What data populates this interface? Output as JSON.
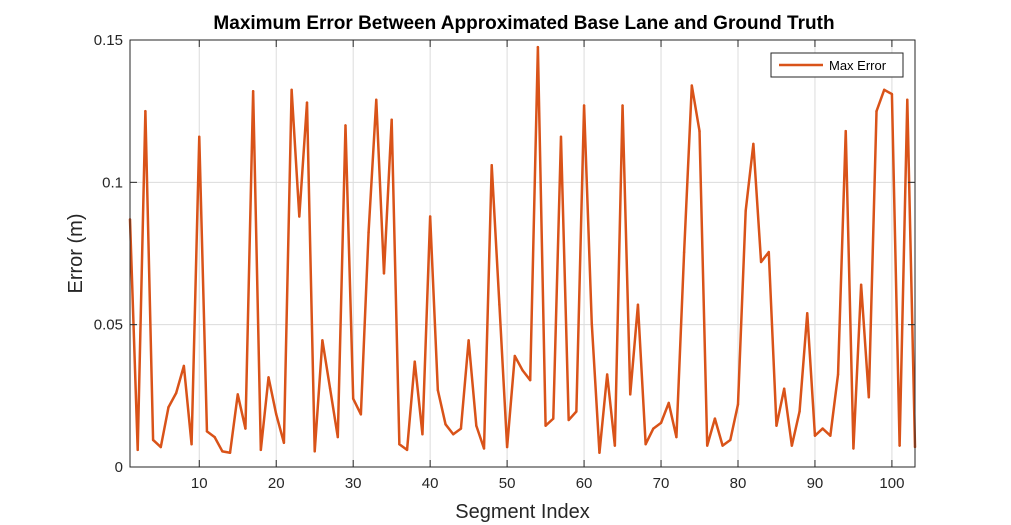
{
  "chart_data": {
    "type": "line",
    "title": "Maximum Error Between Approximated Base Lane and Ground Truth",
    "xlabel": "Segment Index",
    "ylabel": "Error (m)",
    "xlim": [
      1,
      103
    ],
    "ylim": [
      0,
      0.15
    ],
    "xticks": [
      10,
      20,
      30,
      40,
      50,
      60,
      70,
      80,
      90,
      100
    ],
    "yticks": [
      0,
      0.05,
      0.1,
      0.15
    ],
    "xtick_labels": [
      "10",
      "20",
      "30",
      "40",
      "50",
      "60",
      "70",
      "80",
      "90",
      "100"
    ],
    "ytick_labels": [
      "0",
      "0.05",
      "0.1",
      "0.15"
    ],
    "grid": true,
    "legend_position": "top-right",
    "series": [
      {
        "name": "Max Error",
        "color": "#D95319",
        "x": [
          1,
          2,
          3,
          4,
          5,
          6,
          7,
          8,
          9,
          10,
          11,
          12,
          13,
          14,
          15,
          16,
          17,
          18,
          19,
          20,
          21,
          22,
          23,
          24,
          25,
          26,
          27,
          28,
          29,
          30,
          31,
          32,
          33,
          34,
          35,
          36,
          37,
          38,
          39,
          40,
          41,
          42,
          43,
          44,
          45,
          46,
          47,
          48,
          49,
          50,
          51,
          52,
          53,
          54,
          55,
          56,
          57,
          58,
          59,
          60,
          61,
          62,
          63,
          64,
          65,
          66,
          67,
          68,
          69,
          70,
          71,
          72,
          73,
          74,
          75,
          76,
          77,
          78,
          79,
          80,
          81,
          82,
          83,
          84,
          85,
          86,
          87,
          88,
          89,
          90,
          91,
          92,
          93,
          94,
          95,
          96,
          97,
          98,
          99,
          100,
          101,
          102,
          103
        ],
        "values": [
          0.087,
          0.006,
          0.125,
          0.0095,
          0.007,
          0.021,
          0.026,
          0.0355,
          0.008,
          0.116,
          0.0125,
          0.0105,
          0.0055,
          0.005,
          0.0255,
          0.0135,
          0.132,
          0.006,
          0.0315,
          0.0185,
          0.0085,
          0.1325,
          0.088,
          0.128,
          0.0055,
          0.0445,
          0.0275,
          0.0105,
          0.12,
          0.024,
          0.0185,
          0.0825,
          0.129,
          0.068,
          0.122,
          0.008,
          0.006,
          0.037,
          0.0115,
          0.088,
          0.027,
          0.015,
          0.0115,
          0.0135,
          0.0445,
          0.0145,
          0.0065,
          0.106,
          0.057,
          0.007,
          0.039,
          0.034,
          0.0305,
          0.1475,
          0.0145,
          0.017,
          0.116,
          0.0165,
          0.0195,
          0.127,
          0.0505,
          0.005,
          0.0325,
          0.0075,
          0.127,
          0.0255,
          0.057,
          0.008,
          0.0135,
          0.0155,
          0.0225,
          0.0105,
          0.0755,
          0.134,
          0.118,
          0.0075,
          0.017,
          0.0075,
          0.0095,
          0.022,
          0.09,
          0.1135,
          0.072,
          0.0755,
          0.0145,
          0.0275,
          0.0075,
          0.0195,
          0.054,
          0.011,
          0.0135,
          0.011,
          0.0325,
          0.118,
          0.0065,
          0.064,
          0.0245,
          0.125,
          0.1325,
          0.131,
          0.0075,
          0.129,
          0.007
        ]
      }
    ]
  }
}
